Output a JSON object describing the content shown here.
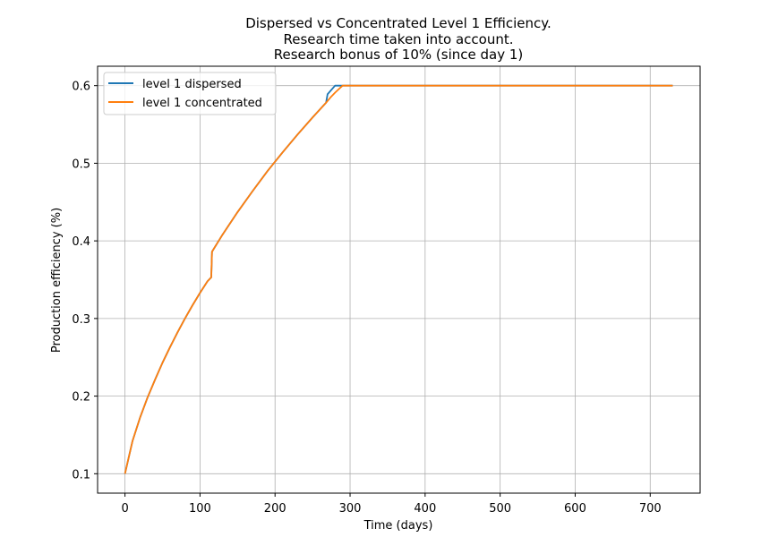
{
  "chart_data": {
    "type": "line",
    "title": [
      "Dispersed vs Concentrated Level 1 Efficiency.",
      "Research time taken into account.",
      "Research bonus of 10% (since day 1)"
    ],
    "xlabel": "Time (days)",
    "ylabel": "Production efficiency (%)",
    "xlim": [
      -36.5,
      766.5
    ],
    "ylim": [
      0.075,
      0.625
    ],
    "xticks": [
      0,
      100,
      200,
      300,
      400,
      500,
      600,
      700
    ],
    "yticks": [
      0.1,
      0.2,
      0.3,
      0.4,
      0.5,
      0.6
    ],
    "grid": true,
    "legend_position": "top-left",
    "series": [
      {
        "name": "level 1 dispersed",
        "color": "#1f77b4",
        "x": [
          0,
          10,
          20,
          30,
          40,
          50,
          60,
          70,
          80,
          90,
          100,
          110,
          115,
          116,
          130,
          150,
          170,
          190,
          210,
          230,
          250,
          268,
          270,
          280,
          285,
          300,
          400,
          500,
          600,
          730
        ],
        "y": [
          0.1,
          0.142,
          0.172,
          0.198,
          0.221,
          0.243,
          0.263,
          0.282,
          0.3,
          0.317,
          0.333,
          0.348,
          0.353,
          0.386,
          0.408,
          0.437,
          0.464,
          0.49,
          0.514,
          0.537,
          0.559,
          0.578,
          0.589,
          0.6,
          0.6,
          0.6,
          0.6,
          0.6,
          0.6,
          0.6
        ]
      },
      {
        "name": "level 1 concentrated",
        "color": "#ff7f0e",
        "x": [
          0,
          10,
          20,
          30,
          40,
          50,
          60,
          70,
          80,
          90,
          100,
          110,
          115,
          116,
          130,
          150,
          170,
          190,
          210,
          230,
          250,
          268,
          275,
          280,
          290,
          300,
          400,
          500,
          600,
          730
        ],
        "y": [
          0.1,
          0.142,
          0.172,
          0.198,
          0.221,
          0.243,
          0.263,
          0.282,
          0.3,
          0.317,
          0.333,
          0.348,
          0.353,
          0.386,
          0.408,
          0.437,
          0.464,
          0.49,
          0.514,
          0.537,
          0.559,
          0.578,
          0.586,
          0.591,
          0.6,
          0.6,
          0.6,
          0.6,
          0.6,
          0.6
        ]
      }
    ]
  }
}
